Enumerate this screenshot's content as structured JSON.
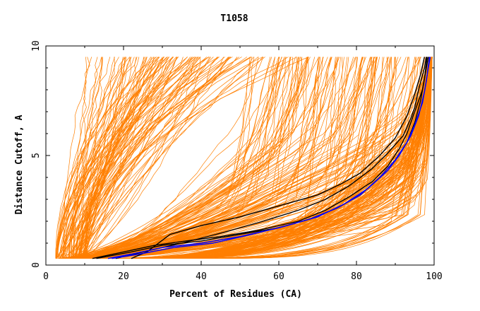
{
  "chart_data": {
    "type": "line",
    "title": "T1058",
    "xlabel": "Percent of Residues (CA)",
    "ylabel": "Distance Cutoff, A",
    "xlim": [
      0,
      100
    ],
    "ylim": [
      0,
      10
    ],
    "x_ticks": [
      "0",
      "20",
      "40",
      "60",
      "80",
      "100"
    ],
    "y_ticks": [
      "0",
      "5",
      "10"
    ],
    "grid": false,
    "legend": "none",
    "colors": {
      "background_models": "#ff7f00",
      "highlight_black": "#000000",
      "highlight_blue": "#0000ff"
    },
    "highlighted_series": [
      {
        "color": "#000000",
        "points": [
          [
            12,
            0.3
          ],
          [
            20,
            0.6
          ],
          [
            28,
            0.9
          ],
          [
            36,
            1.1
          ],
          [
            45,
            1.3
          ],
          [
            55,
            1.6
          ],
          [
            65,
            2.0
          ],
          [
            72,
            2.5
          ],
          [
            78,
            3.1
          ],
          [
            84,
            3.8
          ],
          [
            88,
            4.5
          ],
          [
            91,
            5.3
          ],
          [
            93,
            6.0
          ],
          [
            95,
            7.0
          ],
          [
            97,
            8.0
          ],
          [
            98,
            9.0
          ],
          [
            98.5,
            9.5
          ]
        ]
      },
      {
        "color": "#000000",
        "points": [
          [
            13,
            0.3
          ],
          [
            22,
            0.6
          ],
          [
            30,
            0.9
          ],
          [
            40,
            1.1
          ],
          [
            50,
            1.4
          ],
          [
            60,
            1.7
          ],
          [
            68,
            2.1
          ],
          [
            75,
            2.6
          ],
          [
            81,
            3.2
          ],
          [
            86,
            4.0
          ],
          [
            90,
            4.8
          ],
          [
            93,
            5.6
          ],
          [
            95,
            6.5
          ],
          [
            96.5,
            7.5
          ],
          [
            97.5,
            8.5
          ],
          [
            98.2,
            9.5
          ]
        ]
      },
      {
        "color": "#000000",
        "points": [
          [
            22,
            0.3
          ],
          [
            26,
            0.6
          ],
          [
            32,
            1.4
          ],
          [
            40,
            1.8
          ],
          [
            50,
            2.2
          ],
          [
            60,
            2.7
          ],
          [
            70,
            3.2
          ],
          [
            76,
            3.7
          ],
          [
            81,
            4.2
          ],
          [
            86,
            5.0
          ],
          [
            90,
            5.8
          ],
          [
            93,
            6.8
          ],
          [
            95,
            7.8
          ],
          [
            96.5,
            8.7
          ],
          [
            97.5,
            9.5
          ]
        ]
      },
      {
        "color": "#000000",
        "points": [
          [
            18,
            0.3
          ],
          [
            25,
            0.6
          ],
          [
            35,
            1.0
          ],
          [
            46,
            1.5
          ],
          [
            56,
            2.0
          ],
          [
            65,
            2.5
          ],
          [
            72,
            3.0
          ],
          [
            78,
            3.6
          ],
          [
            84,
            4.4
          ],
          [
            88,
            5.1
          ],
          [
            92,
            5.9
          ],
          [
            94,
            6.7
          ],
          [
            95,
            7.2
          ],
          [
            96,
            8.0
          ],
          [
            97.5,
            9.0
          ],
          [
            98,
            9.5
          ]
        ]
      },
      {
        "color": "#0000ff",
        "points": [
          [
            16,
            0.3
          ],
          [
            22,
            0.5
          ],
          [
            30,
            0.8
          ],
          [
            40,
            1.0
          ],
          [
            50,
            1.3
          ],
          [
            60,
            1.7
          ],
          [
            68,
            2.1
          ],
          [
            75,
            2.6
          ],
          [
            81,
            3.2
          ],
          [
            86,
            4.0
          ],
          [
            90,
            4.8
          ],
          [
            93,
            5.6
          ],
          [
            95,
            6.4
          ],
          [
            97,
            7.4
          ],
          [
            98,
            8.4
          ],
          [
            98.8,
            9.5
          ]
        ]
      },
      {
        "color": "#0000ff",
        "points": [
          [
            17,
            0.3
          ],
          [
            24,
            0.5
          ],
          [
            33,
            0.8
          ],
          [
            43,
            1.0
          ],
          [
            53,
            1.4
          ],
          [
            62,
            1.8
          ],
          [
            70,
            2.2
          ],
          [
            77,
            2.8
          ],
          [
            83,
            3.5
          ],
          [
            88,
            4.3
          ],
          [
            91,
            5.0
          ],
          [
            94,
            5.9
          ],
          [
            96,
            6.8
          ],
          [
            97.5,
            7.9
          ],
          [
            98.5,
            9.0
          ],
          [
            99,
            9.5
          ]
        ]
      }
    ]
  }
}
